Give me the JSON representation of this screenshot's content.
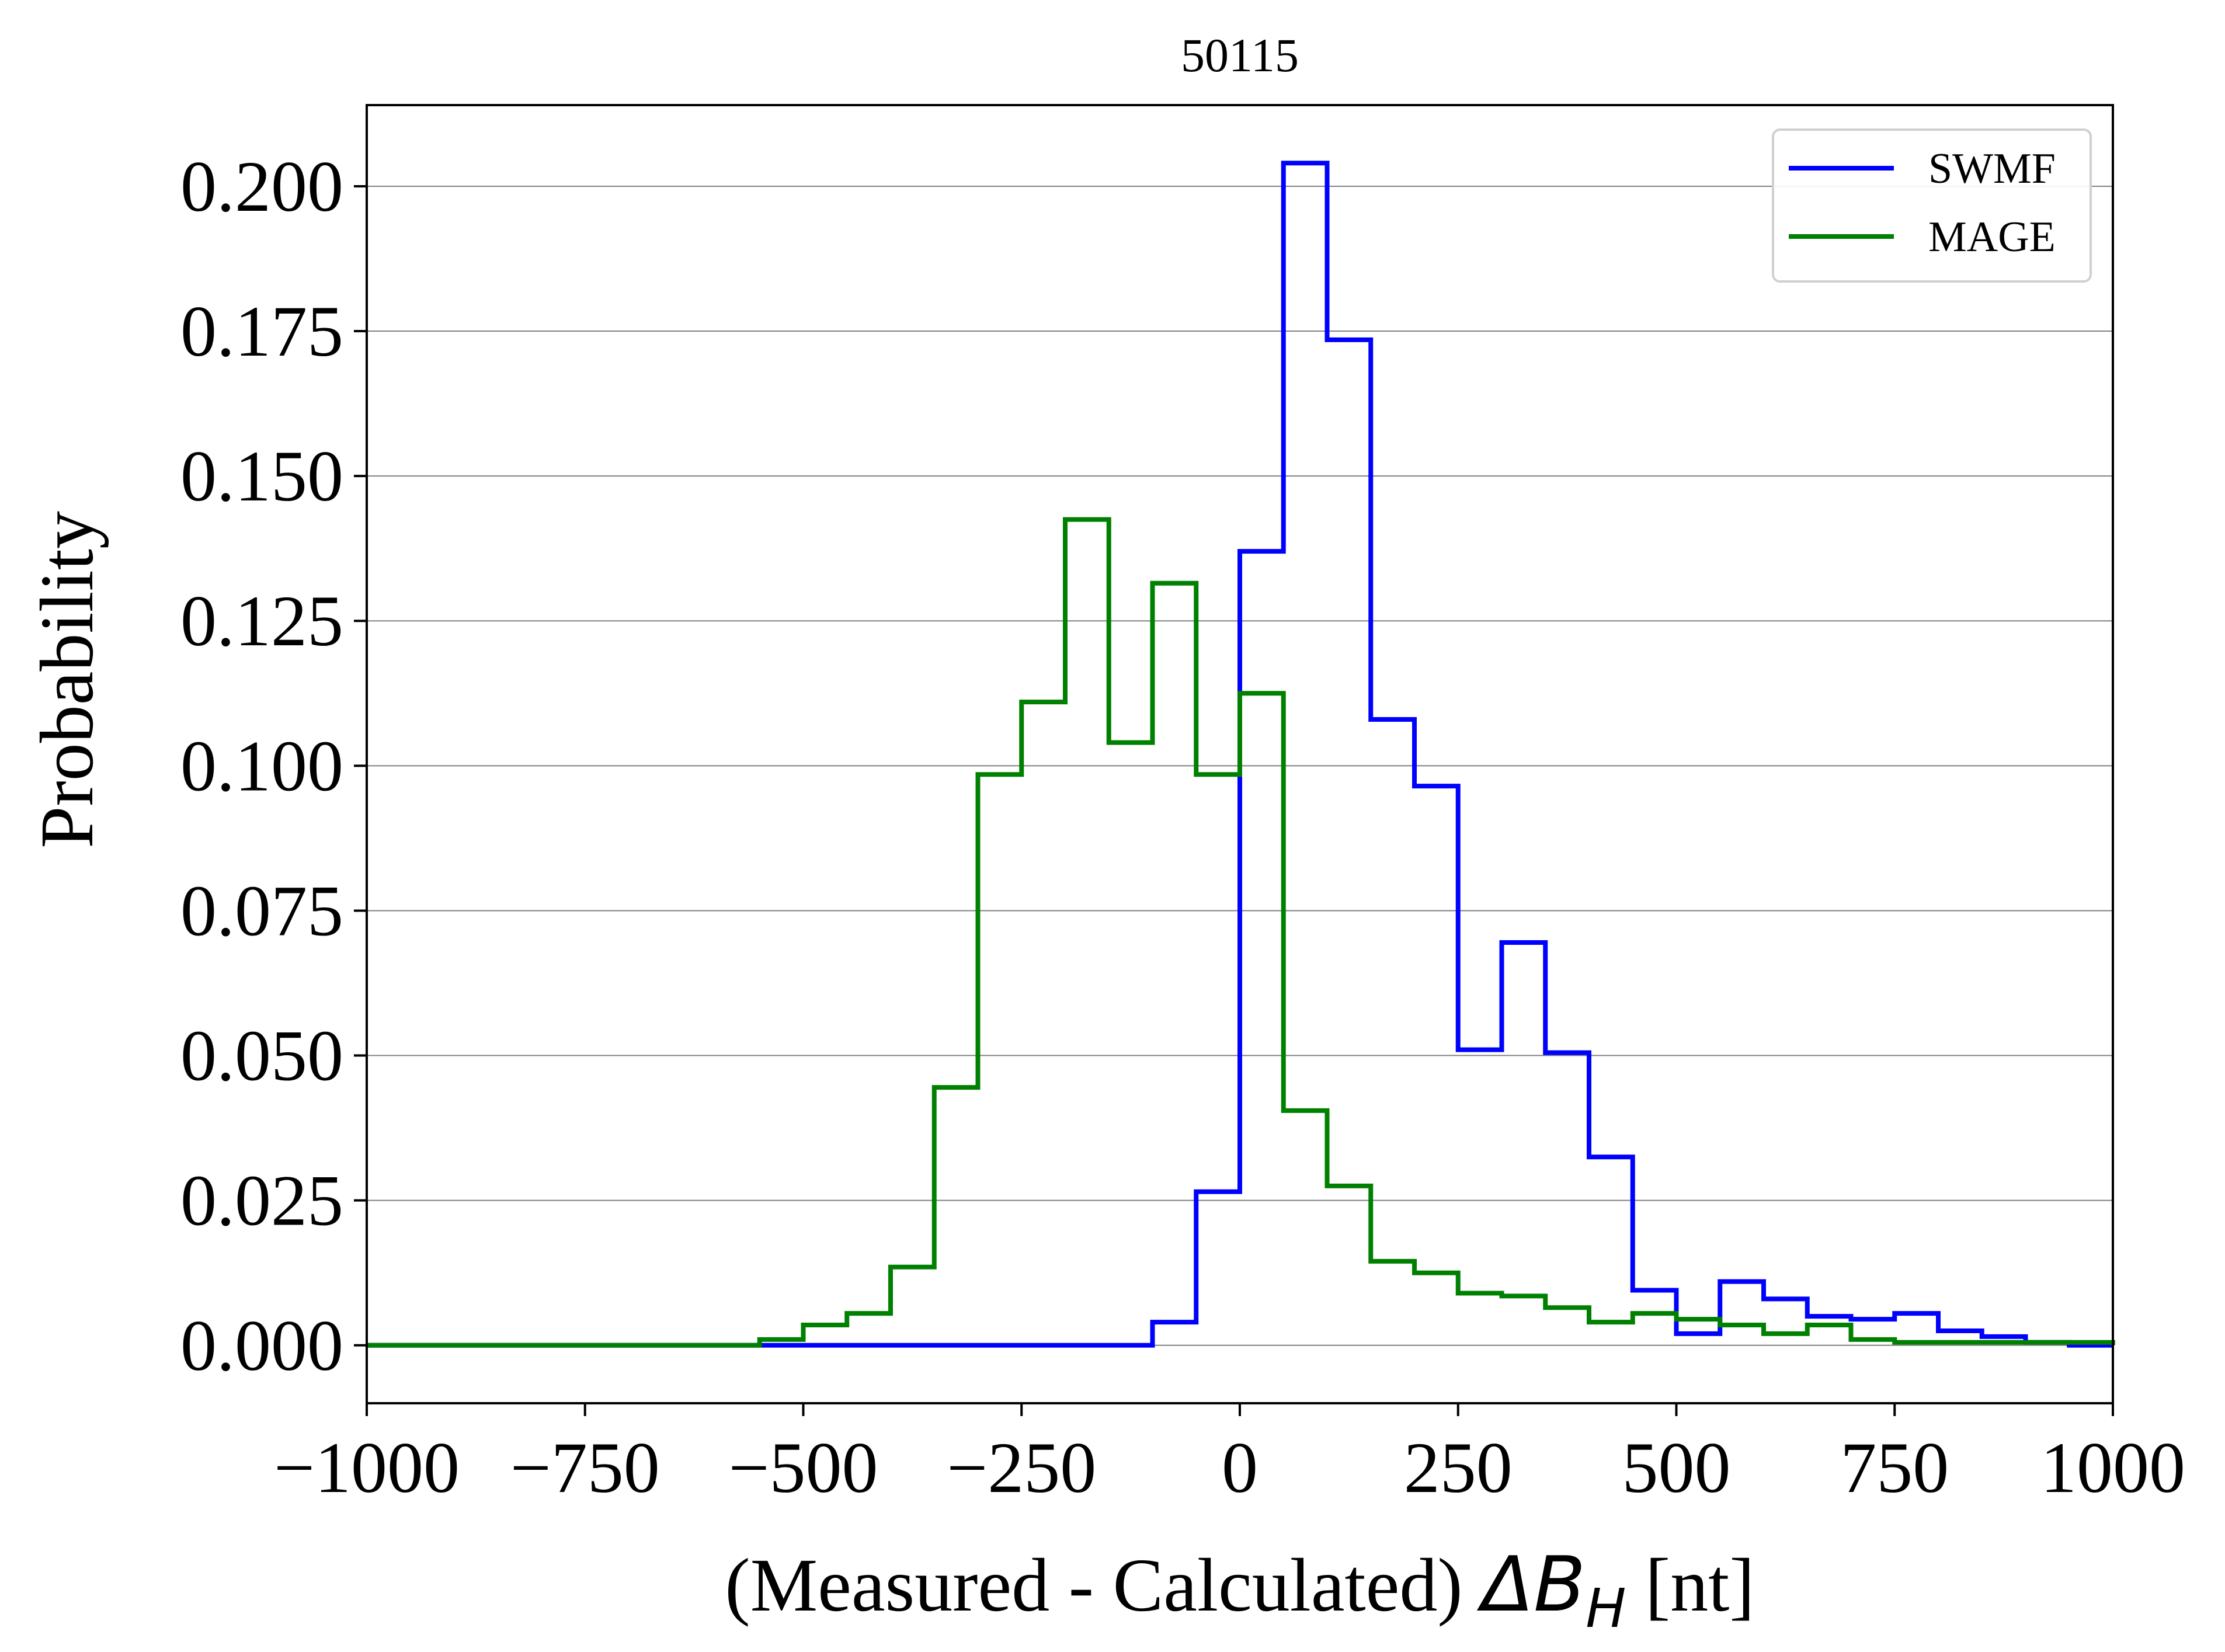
{
  "chart_data": {
    "type": "line",
    "subtype": "step-histogram",
    "title": "50115",
    "xlabel_prefix": "(Measured - Calculated) ",
    "xlabel_symbol": "ΔB",
    "xlabel_subscript": "H",
    "xlabel_suffix": " [nt]",
    "ylabel": "Probability",
    "xlim": [
      -1000,
      1000
    ],
    "ylim": [
      -0.01,
      0.214
    ],
    "grid": "horizontal",
    "legend_position": "top-right",
    "x_ticks": [
      -1000,
      -750,
      -500,
      -250,
      0,
      250,
      500,
      750,
      1000
    ],
    "x_tick_labels": [
      "−1000",
      "−750",
      "−500",
      "−250",
      "0",
      "250",
      "500",
      "750",
      "1000"
    ],
    "y_ticks": [
      0.0,
      0.025,
      0.05,
      0.075,
      0.1,
      0.125,
      0.15,
      0.175,
      0.2
    ],
    "y_tick_labels": [
      "0.000",
      "0.025",
      "0.050",
      "0.075",
      "0.100",
      "0.125",
      "0.150",
      "0.175",
      "0.200"
    ],
    "bin_edges": [
      -1000,
      -950,
      -900,
      -850,
      -800,
      -750,
      -700,
      -650,
      -600,
      -550,
      -500,
      -450,
      -400,
      -350,
      -300,
      -250,
      -200,
      -150,
      -100,
      -50,
      0,
      50,
      100,
      150,
      200,
      250,
      300,
      350,
      400,
      450,
      500,
      550,
      600,
      650,
      700,
      750,
      800,
      850,
      900,
      950,
      1000
    ],
    "series": [
      {
        "name": "SWMF",
        "color": "#0000ff",
        "values": [
          0,
          0,
          0,
          0,
          0,
          0,
          0,
          0,
          0,
          0,
          0,
          0,
          0,
          0,
          0,
          0,
          0,
          0,
          0.004,
          0.0265,
          0.137,
          0.204,
          0.1735,
          0.108,
          0.0965,
          0.051,
          0.0695,
          0.0505,
          0.0325,
          0.0095,
          0.002,
          0.011,
          0.008,
          0.005,
          0.0045,
          0.0055,
          0.0025,
          0.0015,
          0.0005,
          0
        ]
      },
      {
        "name": "MAGE",
        "color": "#008000",
        "values": [
          0,
          0,
          0,
          0,
          0,
          0,
          0,
          0,
          0,
          0.001,
          0.0035,
          0.0055,
          0.0135,
          0.0445,
          0.0985,
          0.111,
          0.1425,
          0.104,
          0.1315,
          0.0985,
          0.1125,
          0.0405,
          0.0275,
          0.0145,
          0.0125,
          0.009,
          0.0085,
          0.0065,
          0.004,
          0.0055,
          0.0045,
          0.0035,
          0.002,
          0.0035,
          0.001,
          0.0005,
          0.0005,
          0.0005,
          0.0005,
          0.0005
        ]
      }
    ]
  }
}
